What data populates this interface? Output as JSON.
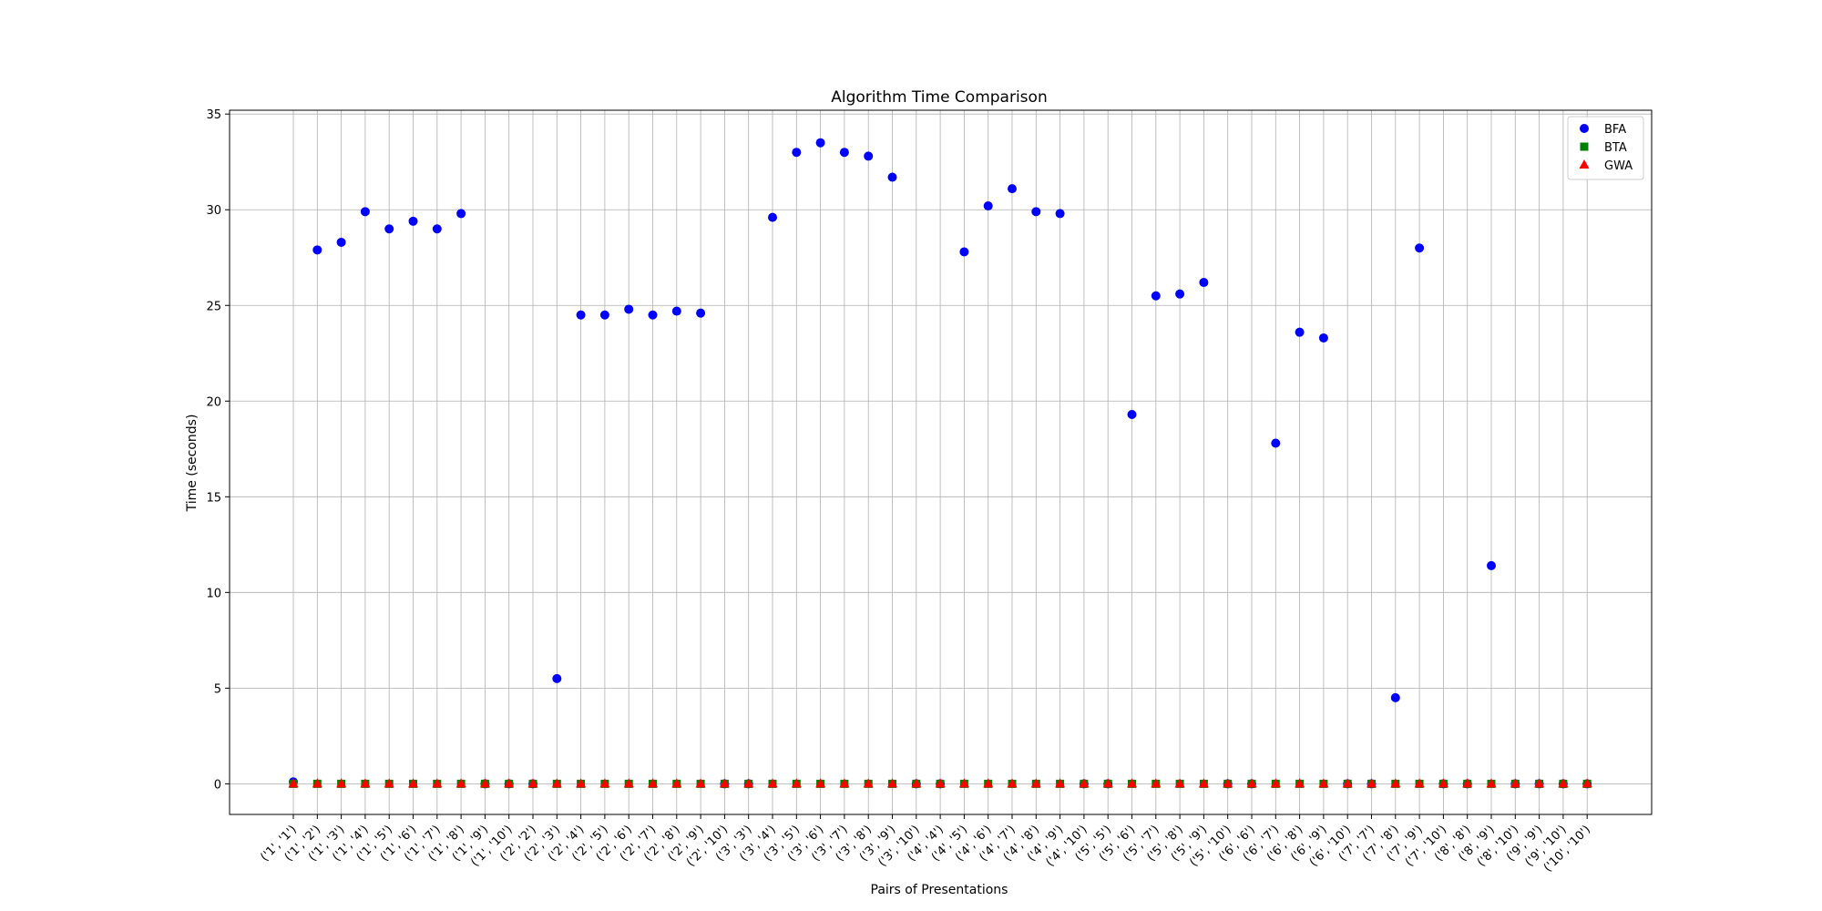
{
  "chart_data": {
    "type": "scatter",
    "title": "Algorithm Time Comparison",
    "xlabel": "Pairs of Presentations",
    "ylabel": "Time (seconds)",
    "ylim": [
      -1.6,
      35.2
    ],
    "yticks": [
      0,
      5,
      10,
      15,
      20,
      25,
      30,
      35
    ],
    "grid": true,
    "legend_position": "top-right",
    "categories": [
      "('1', '1')",
      "('1', '2')",
      "('1', '3')",
      "('1', '4')",
      "('1', '5')",
      "('1', '6')",
      "('1', '7')",
      "('1', '8')",
      "('1', '9')",
      "('1', '10')",
      "('2', '2')",
      "('2', '3')",
      "('2', '4')",
      "('2', '5')",
      "('2', '6')",
      "('2', '7')",
      "('2', '8')",
      "('2', '9')",
      "('2', '10')",
      "('3', '3')",
      "('3', '4')",
      "('3', '5')",
      "('3', '6')",
      "('3', '7')",
      "('3', '8')",
      "('3', '9')",
      "('3', '10')",
      "('4', '4')",
      "('4', '5')",
      "('4', '6')",
      "('4', '7')",
      "('4', '8')",
      "('4', '9')",
      "('4', '10')",
      "('5', '5')",
      "('5', '6')",
      "('5', '7')",
      "('5', '8')",
      "('5', '9')",
      "('5', '10')",
      "('6', '6')",
      "('6', '7')",
      "('6', '8')",
      "('6', '9')",
      "('6', '10')",
      "('7', '7')",
      "('7', '8')",
      "('7', '9')",
      "('7', '10')",
      "('8', '8')",
      "('8', '9')",
      "('8', '10')",
      "('9', '9')",
      "('9', '10')",
      "('10', '10')"
    ],
    "series": [
      {
        "name": "BFA",
        "color": "#0000ff",
        "marker": "circle",
        "values": [
          0.1,
          27.9,
          28.3,
          29.9,
          29.0,
          29.4,
          29.0,
          29.8,
          0,
          0,
          0,
          5.5,
          24.5,
          24.5,
          24.8,
          24.5,
          24.7,
          24.6,
          0,
          0,
          29.6,
          33.0,
          33.5,
          33.0,
          32.8,
          31.7,
          0,
          0,
          27.8,
          30.2,
          31.1,
          29.9,
          29.8,
          0,
          0,
          19.3,
          25.5,
          25.6,
          26.2,
          0,
          0,
          17.8,
          23.6,
          23.3,
          0,
          0,
          4.5,
          28.0,
          0,
          0,
          11.4,
          0,
          0,
          0,
          0
        ]
      },
      {
        "name": "BTA",
        "color": "#008000",
        "marker": "square",
        "values": [
          0,
          0,
          0,
          0,
          0,
          0,
          0,
          0,
          0,
          0,
          0,
          0,
          0,
          0,
          0,
          0,
          0,
          0,
          0,
          0,
          0,
          0,
          0,
          0,
          0,
          0,
          0,
          0,
          0,
          0,
          0,
          0,
          0,
          0,
          0,
          0,
          0,
          0,
          0,
          0,
          0,
          0,
          0,
          0,
          0,
          0,
          0,
          0,
          0,
          0,
          0,
          0,
          0,
          0,
          0
        ]
      },
      {
        "name": "GWA",
        "color": "#ff0000",
        "marker": "triangle",
        "values": [
          0,
          0,
          0,
          0,
          0,
          0,
          0,
          0,
          0,
          0,
          0,
          0,
          0,
          0,
          0,
          0,
          0,
          0,
          0,
          0,
          0,
          0,
          0,
          0,
          0,
          0,
          0,
          0,
          0,
          0,
          0,
          0,
          0,
          0,
          0,
          0,
          0,
          0,
          0,
          0,
          0,
          0,
          0,
          0,
          0,
          0,
          0,
          0,
          0,
          0,
          0,
          0,
          0,
          0,
          0
        ]
      }
    ]
  }
}
